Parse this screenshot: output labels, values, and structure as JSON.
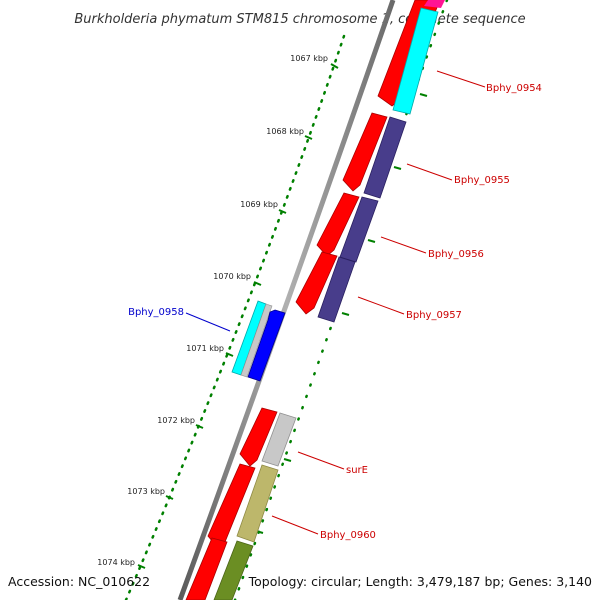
{
  "title": "Burkholderia phymatum STM815 chromosome 1, complete sequence",
  "scale_ticks": [
    "1067 kbp",
    "1068 kbp",
    "1069 kbp",
    "1070 kbp",
    "1071 kbp",
    "1072 kbp",
    "1073 kbp",
    "1074 kbp"
  ],
  "gene_labels": {
    "bphy_0954": "Bphy_0954",
    "bphy_0955": "Bphy_0955",
    "bphy_0956": "Bphy_0956",
    "bphy_0957": "Bphy_0957",
    "bphy_0958": "Bphy_0958",
    "sure": "surE",
    "bphy_0960": "Bphy_0960"
  },
  "footer": {
    "accession": "Accession: NC_010622",
    "topology": "Topology: circular; Length: 3,479,187 bp; Genes: 3,140"
  },
  "colors": {
    "forward_cds": "#ff0000",
    "slate_block": "#483d8b",
    "cyan_block": "#00ffff",
    "blue_gene": "#0000ff",
    "gray_block": "#c8c8c8",
    "khaki_block": "#bdb76b",
    "olive_block": "#6b8e23",
    "magenta_block": "#ff1493",
    "tick_green": "#008000",
    "label_red": "#cc0000",
    "label_blue": "#0000cc"
  }
}
